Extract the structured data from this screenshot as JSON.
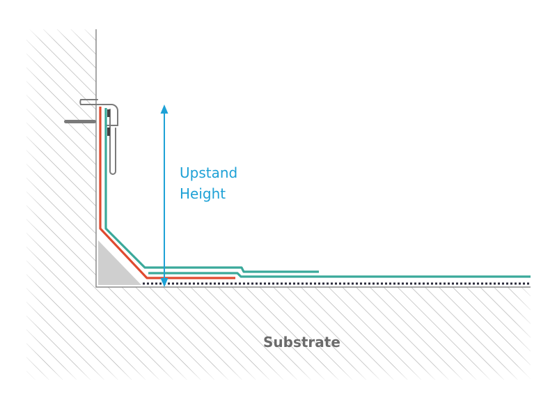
{
  "labels": {
    "upstand_line1": "Upstand",
    "upstand_line2": "Height",
    "substrate": "Substrate"
  },
  "colors": {
    "hatch": "#9a9a9a",
    "red_membrane": "#e04a2f",
    "teal_membrane": "#3aa99a",
    "arrow": "#1da1d6",
    "fillet": "#cfcfcf",
    "bracket": "#7a7a7a",
    "dots": "#2a2a3a"
  }
}
